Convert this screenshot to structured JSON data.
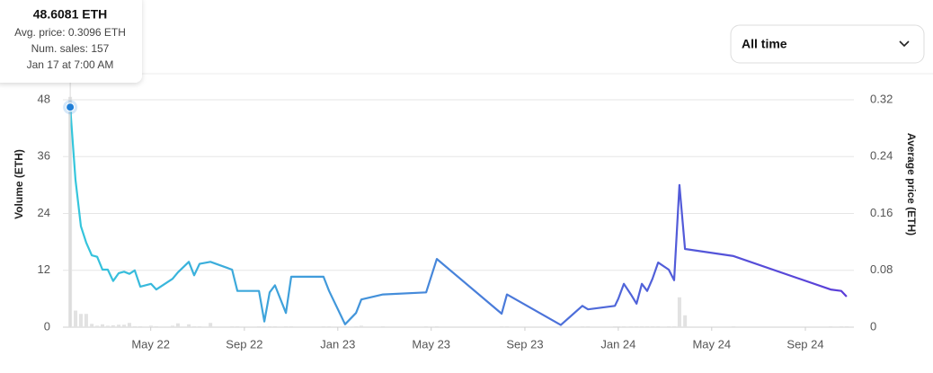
{
  "chart_data": {
    "type": "combo",
    "x": [
      2022.046,
      2022.065,
      2022.084,
      2022.103,
      2022.123,
      2022.142,
      2022.161,
      2022.18,
      2022.199,
      2022.219,
      2022.238,
      2022.257,
      2022.276,
      2022.296,
      2022.334,
      2022.353,
      2022.411,
      2022.43,
      2022.469,
      2022.488,
      2022.507,
      2022.546,
      2022.623,
      2022.642,
      2022.719,
      2022.738,
      2022.757,
      2022.776,
      2022.815,
      2022.834,
      2022.949,
      2022.969,
      2023.026,
      2023.065,
      2023.084,
      2023.161,
      2023.315,
      2023.353,
      2023.584,
      2023.603,
      2023.795,
      2023.872,
      2023.892,
      2023.988,
      2024.0,
      2024.02,
      2024.045,
      2024.065,
      2024.084,
      2024.103,
      2024.122,
      2024.142,
      2024.18,
      2024.199,
      2024.218,
      2024.238,
      2024.411,
      2024.757,
      2024.795,
      2024.814
    ],
    "series": [
      {
        "name": "Volume",
        "type": "bar",
        "axis": "y",
        "color": "#e2e2e2",
        "values": [
          48.6081,
          3.5,
          2.8,
          2.8,
          0.7,
          0.3,
          0.6,
          0.3,
          0.4,
          0.5,
          0.5,
          0.9,
          0.2,
          0.2,
          0.3,
          0.2,
          0.3,
          0.8,
          0.6,
          0.2,
          0.2,
          0.9,
          0.2,
          0.2,
          0.2,
          0.2,
          0.2,
          0.2,
          0.2,
          0.2,
          0.2,
          0.2,
          0.2,
          0.2,
          0.3,
          0.2,
          0.2,
          0.2,
          0.2,
          0.2,
          0.2,
          0.2,
          0.2,
          0.2,
          0.2,
          0.2,
          0.2,
          0.2,
          0.2,
          0.2,
          0.2,
          0.2,
          0.2,
          0.2,
          6.3,
          2.5,
          0.2,
          0.2,
          0.2,
          0.2
        ]
      },
      {
        "name": "Average price",
        "type": "line",
        "axis": "y2",
        "color": "#34c8dc",
        "color_end": "#5b3cd8",
        "values": [
          0.3096,
          0.207,
          0.142,
          0.119,
          0.101,
          0.099,
          0.081,
          0.081,
          0.065,
          0.076,
          0.078,
          0.075,
          0.08,
          0.057,
          0.061,
          0.053,
          0.068,
          0.077,
          0.092,
          0.073,
          0.089,
          0.092,
          0.081,
          0.051,
          0.051,
          0.008,
          0.049,
          0.059,
          0.02,
          0.071,
          0.071,
          0.051,
          0.004,
          0.02,
          0.039,
          0.046,
          0.049,
          0.096,
          0.019,
          0.046,
          0.003,
          0.03,
          0.025,
          0.03,
          0.04,
          0.061,
          0.046,
          0.033,
          0.061,
          0.051,
          0.068,
          0.091,
          0.081,
          0.066,
          0.2,
          0.11,
          0.1,
          0.053,
          0.051,
          0.043
        ]
      }
    ],
    "xlim": [
      2022.02,
      2024.84
    ],
    "xticks": [
      {
        "value": 2022.333,
        "label": "May 22"
      },
      {
        "value": 2022.667,
        "label": "Sep 22"
      },
      {
        "value": 2023.0,
        "label": "Jan 23"
      },
      {
        "value": 2023.333,
        "label": "May 23"
      },
      {
        "value": 2023.667,
        "label": "Sep 23"
      },
      {
        "value": 2024.0,
        "label": "Jan 24"
      },
      {
        "value": 2024.333,
        "label": "May 24"
      },
      {
        "value": 2024.667,
        "label": "Sep 24"
      }
    ],
    "ylim": [
      0,
      48
    ],
    "yticks": [
      0,
      12,
      24,
      36,
      48
    ],
    "y2lim": [
      0,
      0.32
    ],
    "y2ticks": [
      0,
      0.08,
      0.16,
      0.24,
      0.32
    ],
    "ylabel": "Volume (ETH)",
    "y2label": "Average price (ETH)",
    "grid": true
  },
  "tooltip": {
    "title": "48.6081 ETH",
    "lines": [
      "Avg. price: 0.3096 ETH",
      "Num. sales: 157",
      "Jan 17 at 7:00 AM"
    ]
  },
  "dropdown": {
    "label": "All time"
  }
}
